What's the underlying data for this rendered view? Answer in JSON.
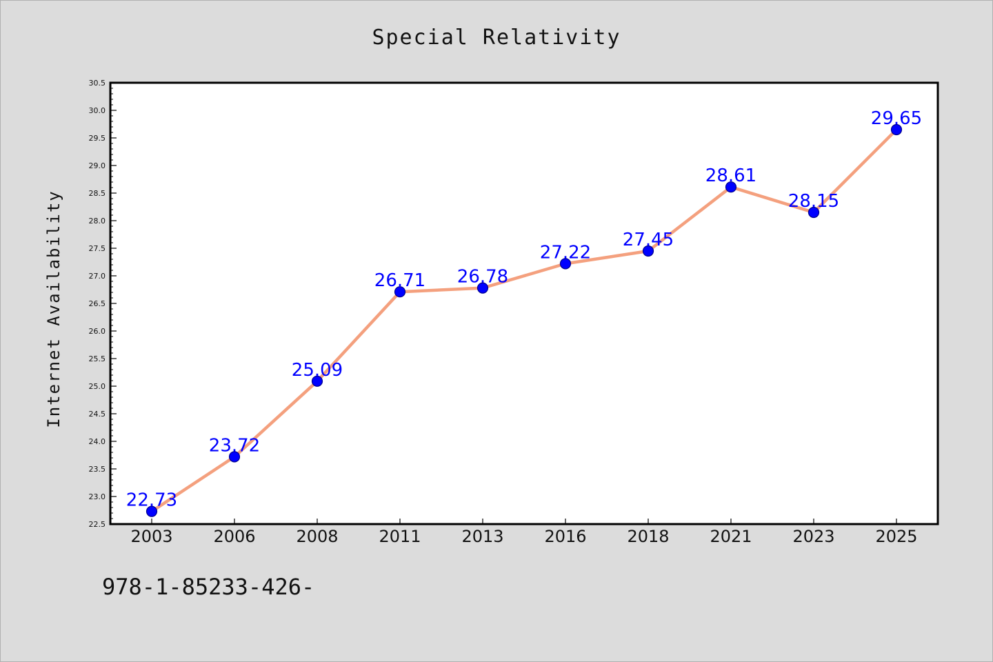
{
  "chart_data": {
    "type": "line",
    "title": "Special Relativity",
    "xlabel": "",
    "ylabel": "Internet Availability",
    "categories": [
      "2003",
      "2006",
      "2008",
      "2011",
      "2013",
      "2016",
      "2018",
      "2021",
      "2023",
      "2025"
    ],
    "series": [
      {
        "values": [
          22.73,
          23.72,
          25.09,
          26.71,
          26.78,
          27.22,
          27.45,
          28.61,
          28.15,
          29.65
        ],
        "line_color": "#f4a07e",
        "marker_color": "#0000ff"
      }
    ],
    "data_labels": [
      "22.73",
      "23.72",
      "25.09",
      "26.71",
      "26.78",
      "27.22",
      "27.45",
      "28.61",
      "28.15",
      "29.65"
    ],
    "ylim": [
      22.5,
      30.5
    ],
    "yticks": [
      "22.5",
      "23.0",
      "23.5",
      "24.0",
      "24.5",
      "25.0",
      "25.5",
      "26.0",
      "26.5",
      "27.0",
      "27.5",
      "28.0",
      "28.5",
      "29.0",
      "29.5",
      "30.0",
      "30.5"
    ],
    "grid": false,
    "legend": "none"
  },
  "footnote": "978-1-85233-426-"
}
